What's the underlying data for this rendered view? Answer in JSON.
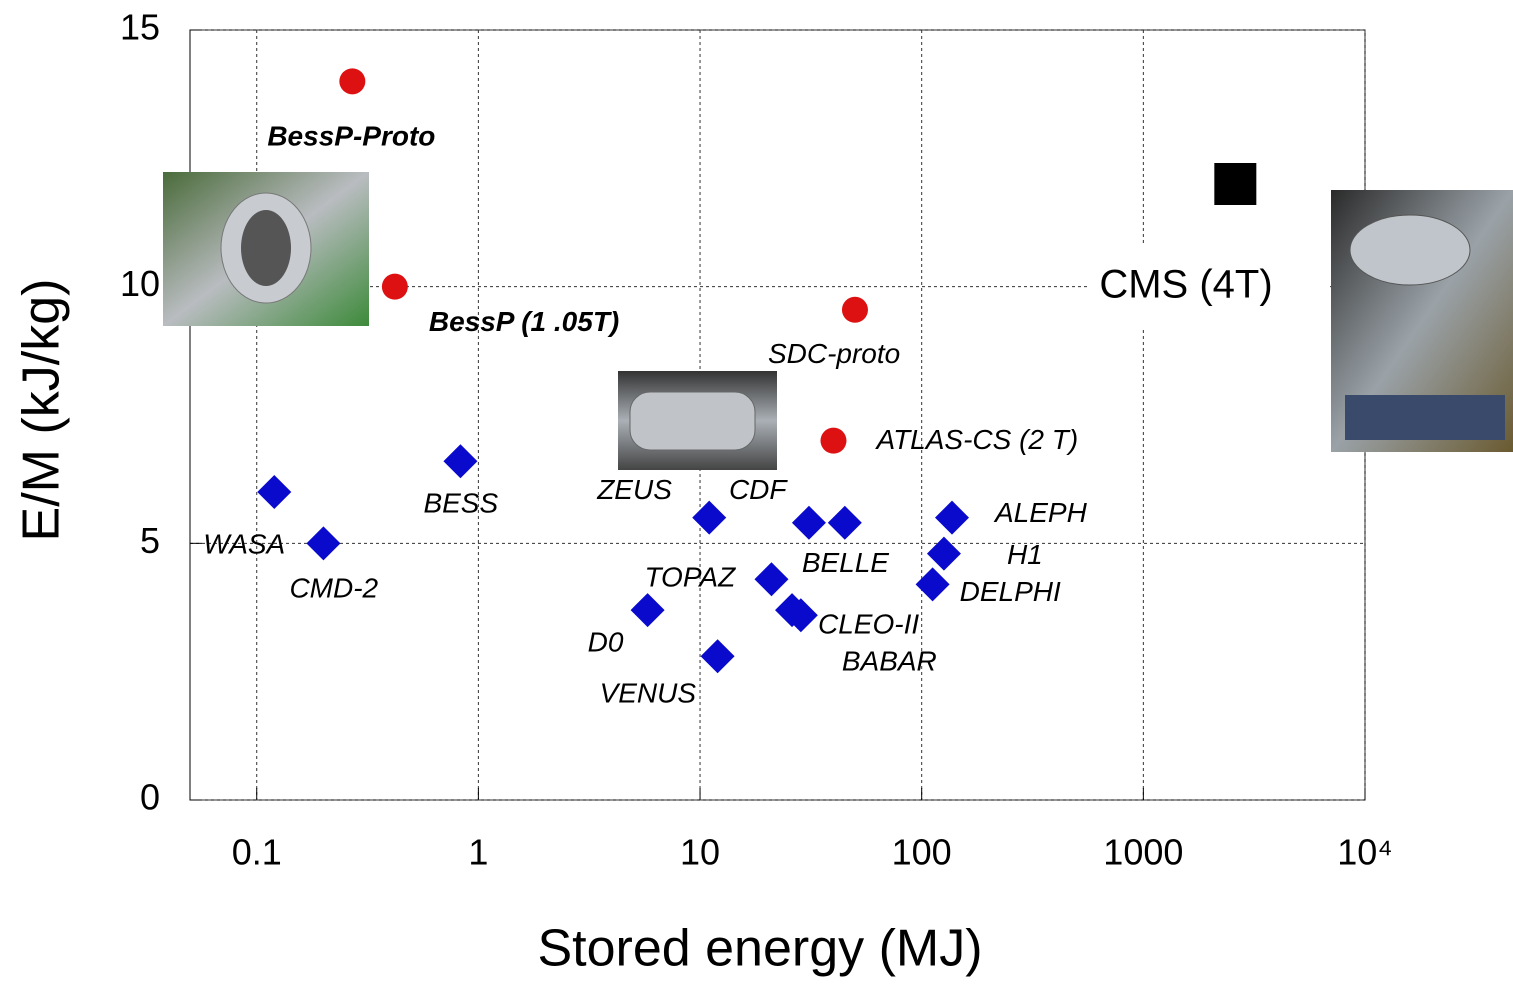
{
  "chart_data": {
    "type": "scatter",
    "x_label": "Stored energy    (MJ)",
    "y_label": "E/M    (kJ/kg)",
    "xlog": true,
    "grid": true,
    "xlim": [
      0.05,
      10000
    ],
    "ylim": [
      0,
      15
    ],
    "xticks": [
      0.1,
      1,
      10,
      100,
      1000,
      {
        "value": 10000,
        "label": "10⁴"
      }
    ],
    "yticks": [
      0,
      5,
      10,
      15
    ],
    "series": [
      {
        "color": "#dd1111",
        "marker": "circle",
        "labels": [
          "BessP-Proto",
          "BessP  (1 .05T)",
          "SDC-proto",
          "ATLAS-CS  (2 T)"
        ],
        "x": [
          0.27,
          0.42,
          50,
          40
        ],
        "y": [
          14,
          10,
          9.55,
          7.0
        ]
      },
      {
        "color": "#0a0acc",
        "marker": "diamond",
        "labels": [
          "WASA",
          "CMD-2",
          "BESS",
          "ZEUS",
          "D0",
          "VENUS",
          "TOPAZ",
          "CDF",
          "BELLE",
          "CLEO-II",
          "BABAR",
          "ALEPH",
          "H1",
          "DELPHI"
        ],
        "x": [
          0.12,
          0.2,
          0.83,
          11,
          5.8,
          12,
          21,
          31,
          45,
          26,
          28.5,
          137,
          126,
          112
        ],
        "y": [
          6.0,
          5.0,
          6.6,
          5.5,
          3.7,
          2.8,
          4.3,
          5.4,
          5.4,
          3.7,
          3.6,
          5.5,
          4.8,
          4.2
        ]
      },
      {
        "color": "#000000",
        "marker": "square",
        "labels": [
          "CMS (4T)"
        ],
        "x": [
          2600
        ],
        "y": [
          12
        ]
      }
    ]
  }
}
